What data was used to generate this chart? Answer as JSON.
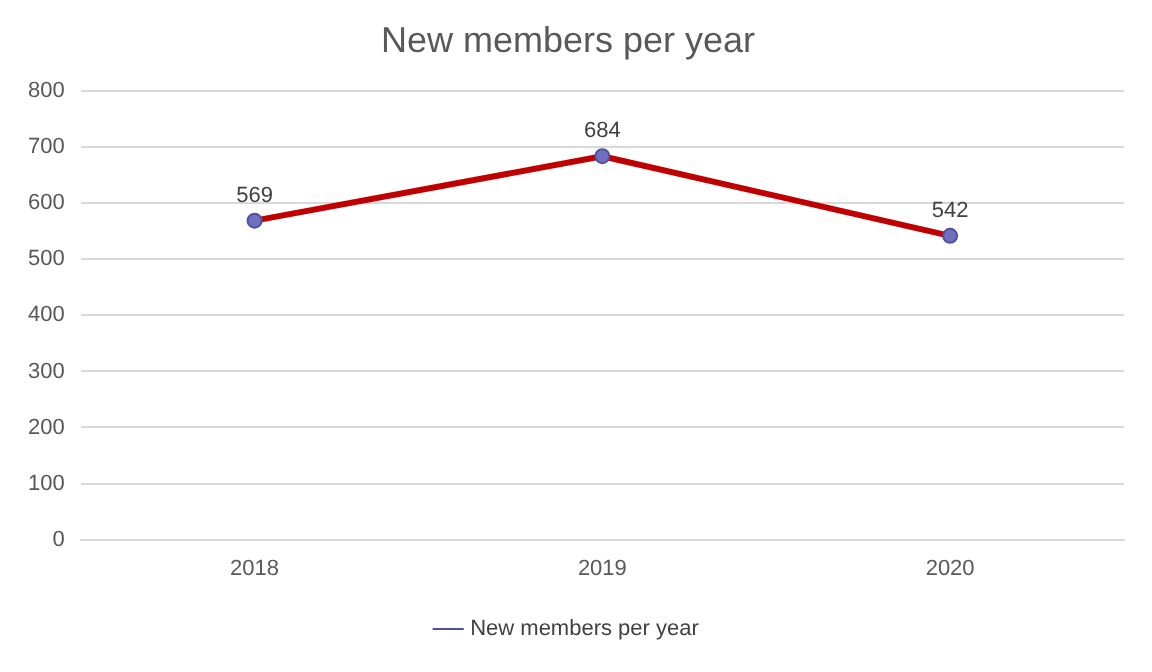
{
  "chart_data": {
    "type": "line",
    "title": "New members per year",
    "categories": [
      "2018",
      "2019",
      "2020"
    ],
    "series": [
      {
        "name": "New members per year",
        "color": "#c00000",
        "values": [
          569,
          684,
          542
        ]
      }
    ],
    "ylim": [
      0,
      800
    ],
    "yticks": [
      0,
      100,
      200,
      300,
      400,
      500,
      600,
      700,
      800
    ],
    "grid": "y",
    "legend": "bottom",
    "marker": "circle",
    "data_labels": true
  }
}
